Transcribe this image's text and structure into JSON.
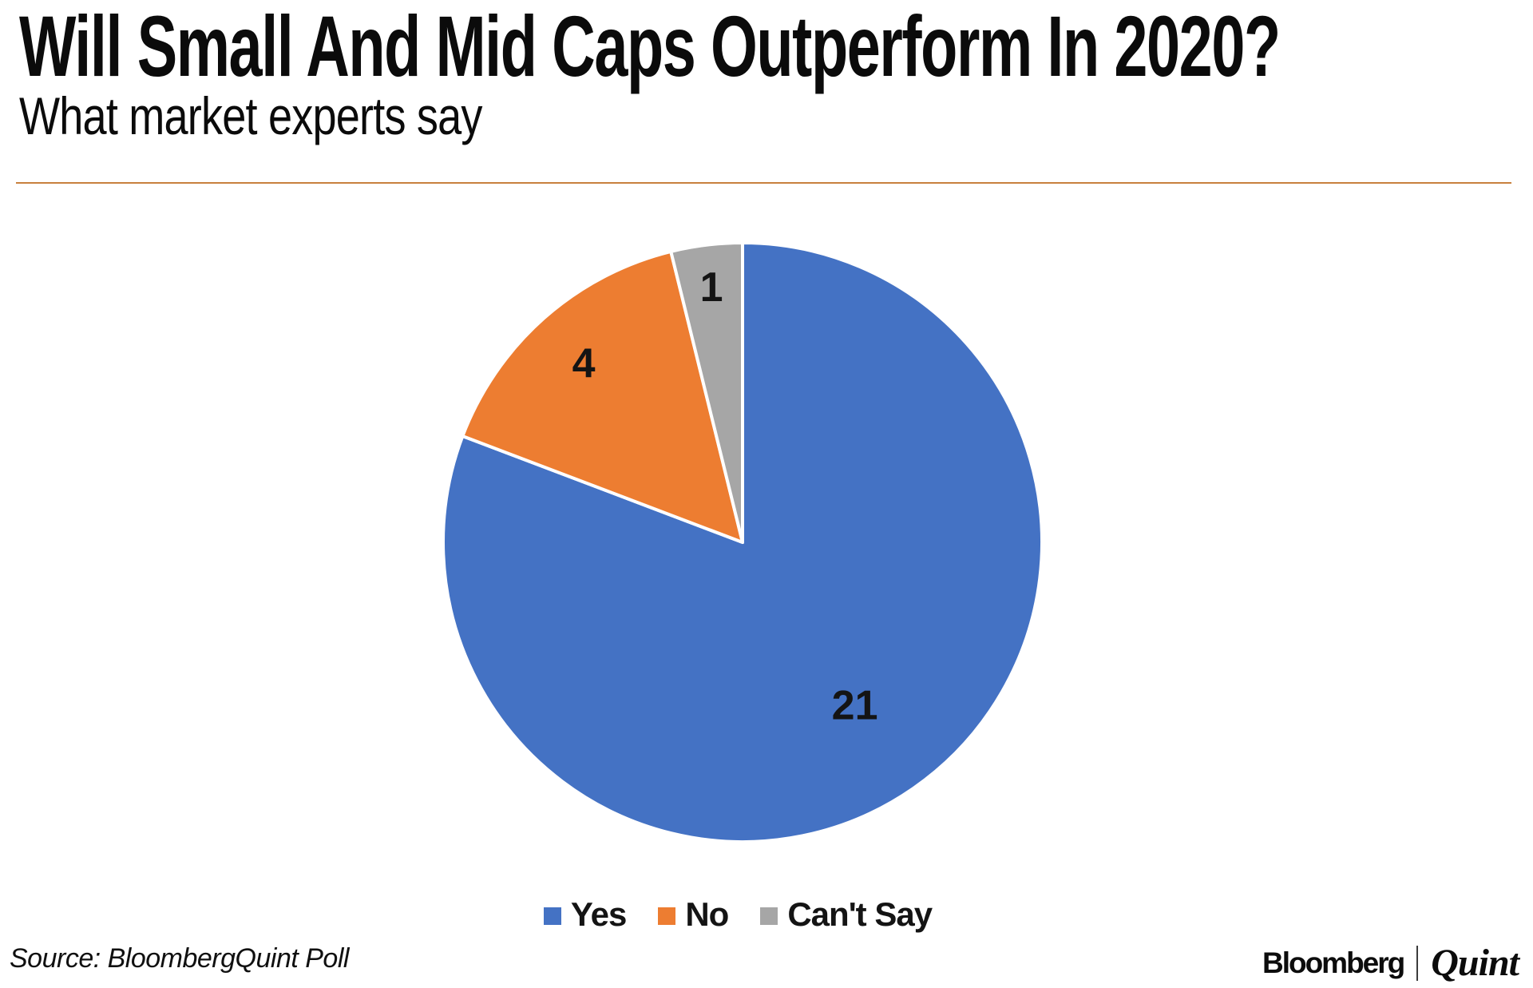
{
  "header": {
    "title": "Will Small And Mid Caps Outperform In 2020?",
    "subtitle": "What market experts say",
    "divider_color": "#c8803d"
  },
  "chart_data": {
    "type": "pie",
    "title": "Will Small And Mid Caps Outperform In 2020?",
    "subtitle": "What market experts say",
    "categories": [
      "Yes",
      "No",
      "Can't Say"
    ],
    "values": [
      21,
      4,
      1
    ],
    "colors": [
      "#4472C4",
      "#ED7D31",
      "#A6A6A6"
    ],
    "data_labels": [
      "21",
      "4",
      "1"
    ],
    "label_color": "#141414",
    "slice_border_color": "#FFFFFF",
    "start_angle_deg": 0,
    "direction": "clockwise",
    "label_radius_fractions": [
      0.66,
      0.8,
      0.86
    ],
    "legend_position": "bottom"
  },
  "footer": {
    "source": "Source: BloombergQuint Poll",
    "brand_left": "Bloomberg",
    "brand_right": "Quint"
  }
}
